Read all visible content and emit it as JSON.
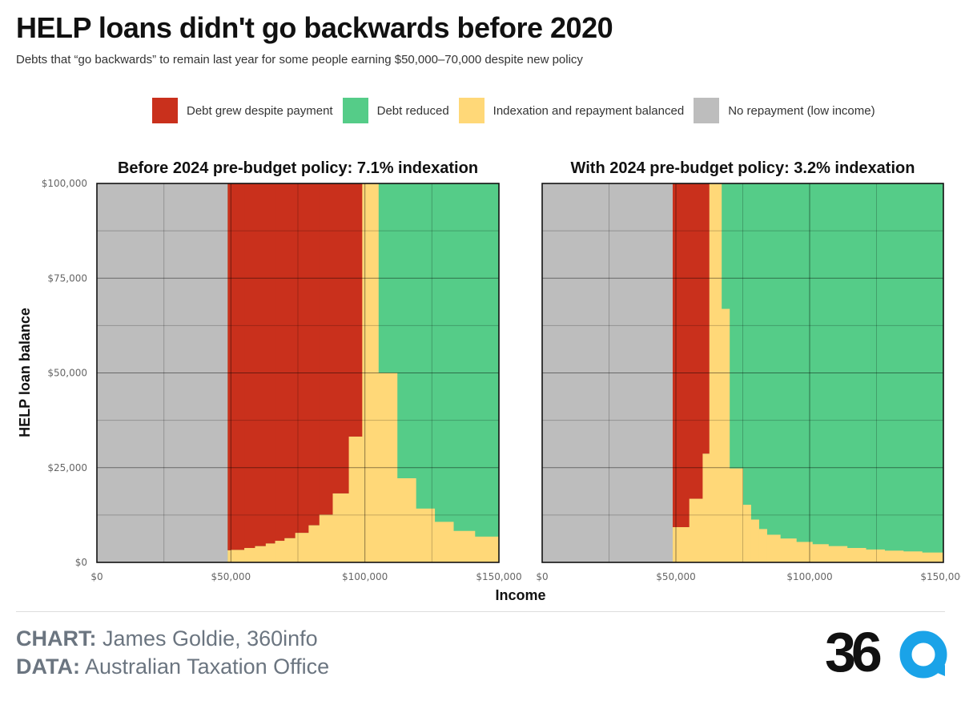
{
  "header": {
    "title": "HELP loans didn't go backwards before 2020",
    "subtitle": "Debts that “go backwards” to remain last year for some people earning $50,000–70,000 despite new policy"
  },
  "legend": {
    "items": [
      {
        "label": "Debt grew despite payment",
        "color": "#c9301c"
      },
      {
        "label": "Debt reduced",
        "color": "#55cc88"
      },
      {
        "label": "Indexation and repayment balanced",
        "color": "#ffd878"
      },
      {
        "label": "No repayment (low income)",
        "color": "#bdbdbd"
      }
    ]
  },
  "footer": {
    "chart_label": "CHART:",
    "chart_credit": "James Goldie, 360info",
    "data_label": "DATA:",
    "data_credit": "Australian Taxation Office",
    "logo_text": "36"
  },
  "chart_data": [
    {
      "type": "area",
      "title": "Before 2024 pre-budget policy: 7.1% indexation",
      "xlabel": "Income",
      "ylabel": "HELP loan balance",
      "xlim": [
        0,
        150000
      ],
      "ylim": [
        0,
        100000
      ],
      "x_ticks": [
        "$0",
        "$50,000",
        "$100,000",
        "$150,000"
      ],
      "y_ticks": [
        "$0",
        "$25,000",
        "$50,000",
        "$75,000",
        "$100,000"
      ],
      "grid": true,
      "no_repayment_below_income": 48800,
      "debt_reduced_from_income": 105000,
      "steps": [
        {
          "x0": 48800,
          "x1": 50000,
          "lower": 3200,
          "upper": 100000
        },
        {
          "x0": 50000,
          "x1": 55000,
          "lower": 3300,
          "upper": 100000
        },
        {
          "x0": 55000,
          "x1": 59000,
          "lower": 3800,
          "upper": 100000
        },
        {
          "x0": 59000,
          "x1": 63000,
          "lower": 4300,
          "upper": 100000
        },
        {
          "x0": 63000,
          "x1": 66500,
          "lower": 5000,
          "upper": 100000
        },
        {
          "x0": 66500,
          "x1": 70000,
          "lower": 5700,
          "upper": 100000
        },
        {
          "x0": 70000,
          "x1": 74000,
          "lower": 6400,
          "upper": 100000
        },
        {
          "x0": 74000,
          "x1": 79000,
          "lower": 7800,
          "upper": 100000
        },
        {
          "x0": 79000,
          "x1": 83000,
          "lower": 9800,
          "upper": 100000
        },
        {
          "x0": 83000,
          "x1": 88000,
          "lower": 12600,
          "upper": 100000
        },
        {
          "x0": 88000,
          "x1": 94000,
          "lower": 18200,
          "upper": 100000
        },
        {
          "x0": 94000,
          "x1": 99000,
          "lower": 33200,
          "upper": 100000
        },
        {
          "x0": 99000,
          "x1": 105000,
          "lower": 100000,
          "upper": 100000
        },
        {
          "x0": 105000,
          "x1": 112000,
          "lower": 50000,
          "upper": 50000
        },
        {
          "x0": 112000,
          "x1": 119000,
          "lower": 22200,
          "upper": 22200
        },
        {
          "x0": 119000,
          "x1": 126000,
          "lower": 14200,
          "upper": 14200
        },
        {
          "x0": 126000,
          "x1": 133000,
          "lower": 10700,
          "upper": 10700
        },
        {
          "x0": 133000,
          "x1": 141000,
          "lower": 8300,
          "upper": 8300
        },
        {
          "x0": 141000,
          "x1": 150000,
          "lower": 6800,
          "upper": 6800
        }
      ]
    },
    {
      "type": "area",
      "title": "With 2024 pre-budget policy: 3.2% indexation",
      "xlabel": "Income",
      "ylabel": "HELP loan balance",
      "xlim": [
        0,
        150000
      ],
      "ylim": [
        0,
        100000
      ],
      "x_ticks": [
        "$0",
        "$50,000",
        "$100,000",
        "$150,000"
      ],
      "y_ticks": [
        "$0",
        "$25,000",
        "$50,000",
        "$75,000",
        "$100,000"
      ],
      "grid": true,
      "no_repayment_below_income": 48800,
      "debt_reduced_from_income": 67000,
      "steps": [
        {
          "x0": 48800,
          "x1": 55000,
          "lower": 9300,
          "upper": 100000
        },
        {
          "x0": 55000,
          "x1": 60000,
          "lower": 16800,
          "upper": 100000
        },
        {
          "x0": 60000,
          "x1": 62500,
          "lower": 28700,
          "upper": 100000
        },
        {
          "x0": 62500,
          "x1": 67000,
          "lower": 100000,
          "upper": 100000
        },
        {
          "x0": 67000,
          "x1": 70000,
          "lower": 66900,
          "upper": 66900
        },
        {
          "x0": 70000,
          "x1": 75000,
          "lower": 24800,
          "upper": 24800
        },
        {
          "x0": 75000,
          "x1": 78000,
          "lower": 15200,
          "upper": 15200
        },
        {
          "x0": 78000,
          "x1": 81000,
          "lower": 11300,
          "upper": 11300
        },
        {
          "x0": 81000,
          "x1": 84000,
          "lower": 8800,
          "upper": 8800
        },
        {
          "x0": 84000,
          "x1": 89000,
          "lower": 7300,
          "upper": 7300
        },
        {
          "x0": 89000,
          "x1": 95000,
          "lower": 6300,
          "upper": 6300
        },
        {
          "x0": 95000,
          "x1": 101000,
          "lower": 5400,
          "upper": 5400
        },
        {
          "x0": 101000,
          "x1": 107000,
          "lower": 4800,
          "upper": 4800
        },
        {
          "x0": 107000,
          "x1": 114000,
          "lower": 4300,
          "upper": 4300
        },
        {
          "x0": 114000,
          "x1": 121000,
          "lower": 3800,
          "upper": 3800
        },
        {
          "x0": 121000,
          "x1": 128000,
          "lower": 3400,
          "upper": 3400
        },
        {
          "x0": 128000,
          "x1": 135000,
          "lower": 3100,
          "upper": 3100
        },
        {
          "x0": 135000,
          "x1": 142000,
          "lower": 2900,
          "upper": 2900
        },
        {
          "x0": 142000,
          "x1": 150000,
          "lower": 2600,
          "upper": 2600
        }
      ]
    }
  ]
}
